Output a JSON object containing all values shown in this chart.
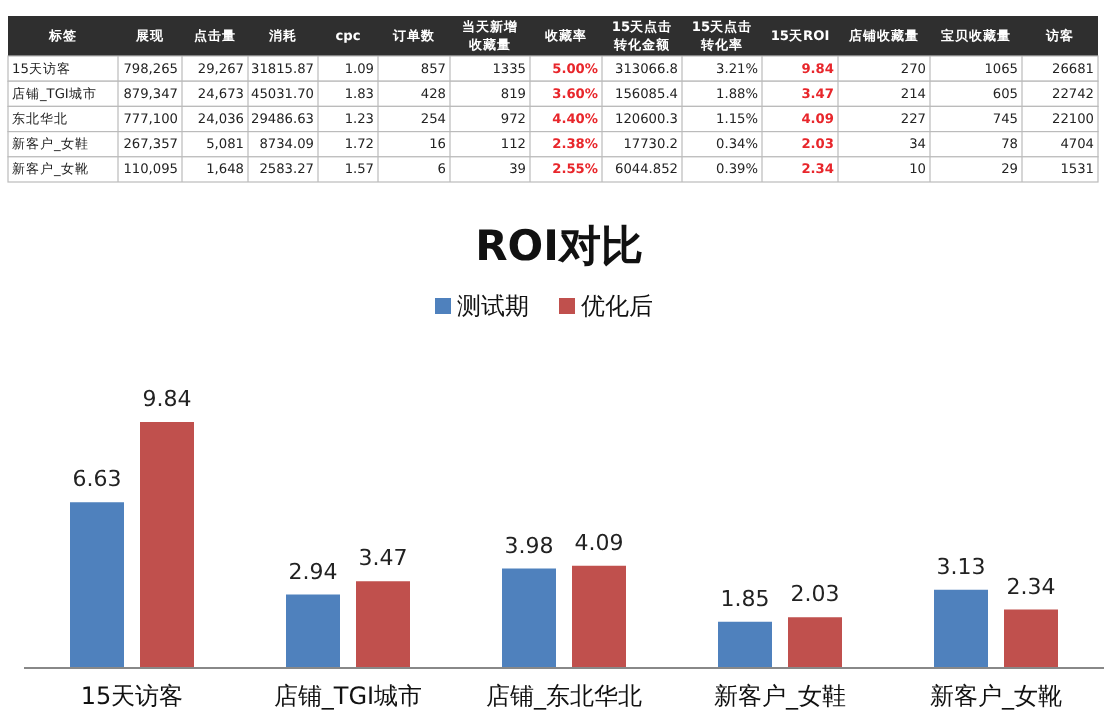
{
  "chart_data": [
    {
      "type": "other",
      "ylabel": "标签",
      "categories": [
        "展现",
        "点击量",
        "消耗",
        "cpc",
        "订单数",
        "当天新增收藏量",
        "收藏率",
        "15天点击转化金额",
        "15天点击转化率",
        "15天ROI",
        "店铺收藏量",
        "宝贝收藏量",
        "访客"
      ],
      "colors": [
        "#222222",
        "#222222",
        "#222222",
        "#222222",
        "#222222",
        "#222222",
        "#e8262b",
        "#222222",
        "#222222",
        "#e8262b",
        "#222222",
        "#222222",
        "#222222"
      ],
      "y_categories": [
        "15天访客",
        "店铺_TGI城市",
        "东北华北",
        "新客户_女鞋",
        "新客户_女靴"
      ],
      "cell_labels": [
        [
          "798,265",
          "29,267",
          "31815.87",
          "1.09",
          "857",
          "1335",
          "5.00%",
          "313066.8",
          "3.21%",
          "9.84",
          "270",
          "1065",
          "26681"
        ],
        [
          "879,347",
          "24,673",
          "45031.70",
          "1.83",
          "428",
          "819",
          "3.60%",
          "156085.4",
          "1.88%",
          "3.47",
          "214",
          "605",
          "22742"
        ],
        [
          "777,100",
          "24,036",
          "29486.63",
          "1.23",
          "254",
          "972",
          "4.40%",
          "120600.3",
          "1.15%",
          "4.09",
          "227",
          "745",
          "22100"
        ],
        [
          "267,357",
          "5,081",
          "8734.09",
          "1.72",
          "16",
          "112",
          "2.38%",
          "17730.2",
          "0.34%",
          "2.03",
          "34",
          "78",
          "4704"
        ],
        [
          "110,095",
          "1,648",
          "2583.27",
          "1.57",
          "6",
          "39",
          "2.55%",
          "6044.852",
          "0.39%",
          "2.34",
          "10",
          "29",
          "1531"
        ]
      ]
    },
    {
      "type": "bar",
      "title": "ROI对比",
      "data_labels": true,
      "legend": "top",
      "grid": false,
      "categories": [
        "15天访客",
        "店铺_TGI城市",
        "店铺_东北华北",
        "新客户_女鞋",
        "新客户_女靴"
      ],
      "series": [
        {
          "name": "测试期",
          "color": "#4f81bd",
          "values": [
            6.63,
            2.94,
            3.98,
            1.85,
            3.13
          ]
        },
        {
          "name": "优化后",
          "color": "#c0504d",
          "values": [
            9.84,
            3.47,
            4.09,
            2.03,
            2.34
          ]
        }
      ]
    }
  ]
}
